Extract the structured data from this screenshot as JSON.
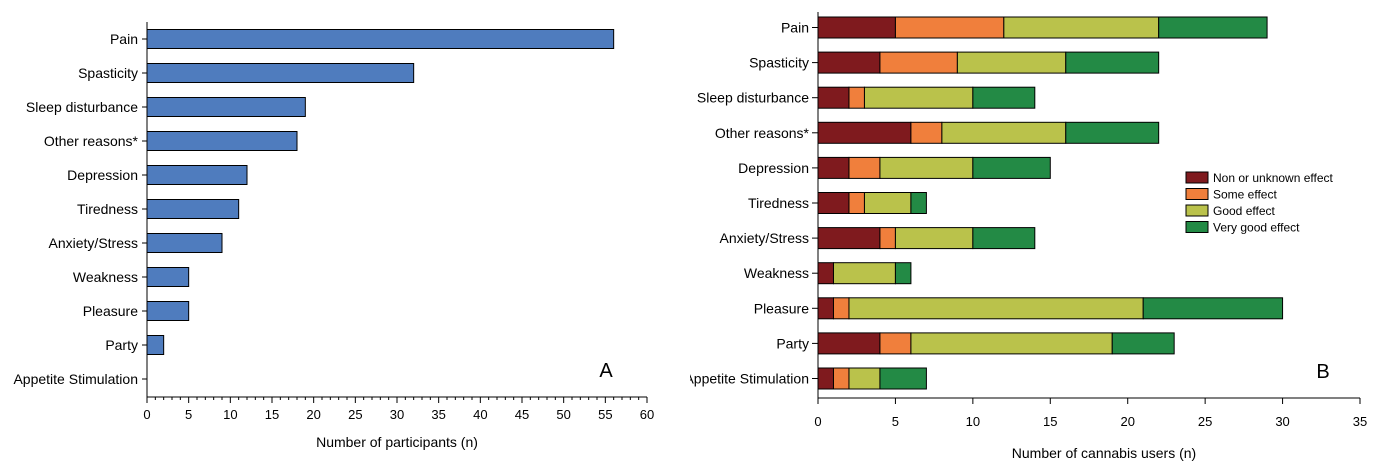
{
  "chart_data": [
    {
      "type": "bar",
      "orientation": "horizontal",
      "categories": [
        "Pain",
        "Spasticity",
        "Sleep disturbance",
        "Other reasons*",
        "Depression",
        "Tiredness",
        "Anxiety/Stress",
        "Weakness",
        "Pleasure",
        "Party",
        "Appetite Stimulation"
      ],
      "values": [
        56,
        32,
        19,
        18,
        12,
        11,
        9,
        5,
        5,
        2,
        0
      ],
      "xlabel": "Number of participants (n)",
      "ylabel": "",
      "xlim": [
        0,
        60
      ],
      "xticks": [
        0,
        5,
        10,
        15,
        20,
        25,
        30,
        35,
        40,
        45,
        50,
        55,
        60
      ],
      "grid": false,
      "panel_label": "A",
      "bar_color": "#4f7cbe"
    },
    {
      "type": "bar",
      "orientation": "horizontal",
      "stacked": true,
      "categories": [
        "Pain",
        "Spasticity",
        "Sleep disturbance",
        "Other reasons*",
        "Depression",
        "Tiredness",
        "Anxiety/Stress",
        "Weakness",
        "Pleasure",
        "Party",
        "Appetite Stimulation"
      ],
      "series": [
        {
          "name": "Non or unknown effect",
          "color": "#7f1a1e",
          "values": [
            5,
            4,
            2,
            6,
            2,
            2,
            4,
            1,
            1,
            4,
            1
          ]
        },
        {
          "name": "Some effect",
          "color": "#f07f3c",
          "values": [
            7,
            5,
            1,
            2,
            2,
            1,
            1,
            0,
            1,
            2,
            1
          ]
        },
        {
          "name": "Good effect",
          "color": "#bac24b",
          "values": [
            10,
            7,
            7,
            8,
            6,
            3,
            5,
            4,
            19,
            13,
            2
          ]
        },
        {
          "name": "Very good effect",
          "color": "#238a45",
          "values": [
            7,
            6,
            4,
            6,
            5,
            1,
            4,
            1,
            9,
            4,
            3
          ]
        }
      ],
      "xlabel": "Number of cannabis users (n)",
      "ylabel": "",
      "xlim": [
        0,
        35
      ],
      "xticks": [
        0,
        5,
        10,
        15,
        20,
        25,
        30,
        35
      ],
      "grid": false,
      "legend_position": "right",
      "panel_label": "B"
    }
  ]
}
